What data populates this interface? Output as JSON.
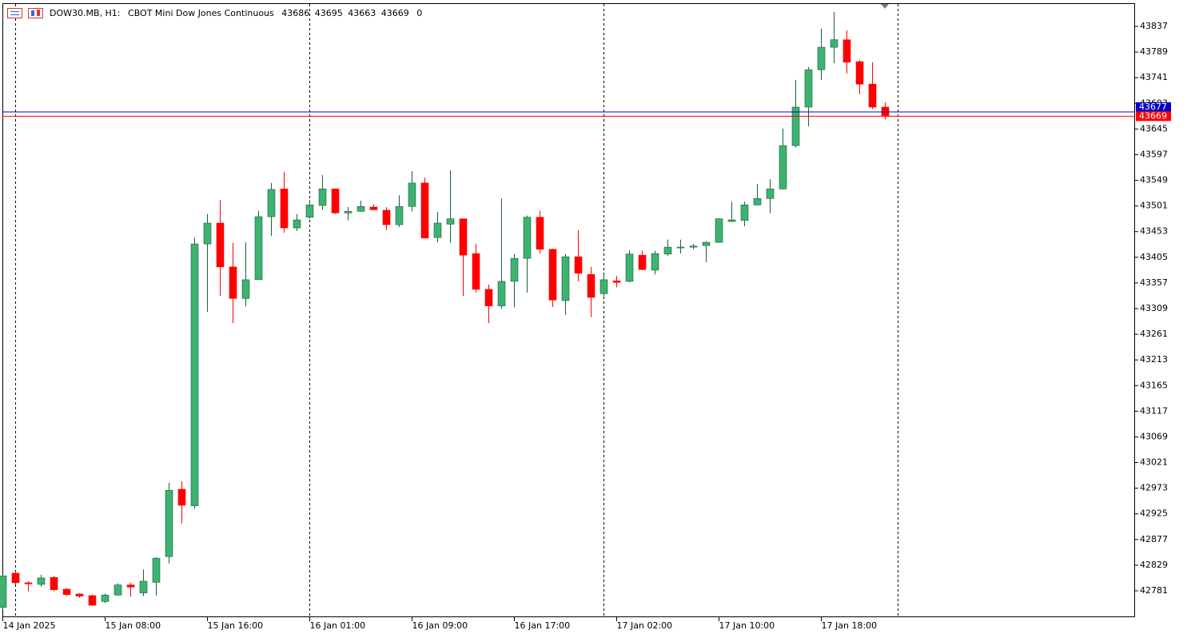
{
  "chart_data": {
    "type": "candlestick",
    "header": {
      "symbol": "DOW30.MB, H1:",
      "description": "CBOT Mini Dow Jones Continuous",
      "volume": 0
    },
    "categories": [
      "14 Jan 2025",
      null,
      null,
      null,
      null,
      null,
      null,
      null,
      "15 Jan 08:00",
      null,
      null,
      null,
      null,
      null,
      null,
      null,
      "15 Jan 16:00",
      null,
      null,
      null,
      null,
      null,
      null,
      null,
      "16 Jan 01:00",
      null,
      null,
      null,
      null,
      null,
      null,
      null,
      "16 Jan 09:00",
      null,
      null,
      null,
      null,
      null,
      null,
      null,
      "16 Jan 17:00",
      null,
      null,
      null,
      null,
      null,
      null,
      null,
      "17 Jan 02:00",
      null,
      null,
      null,
      null,
      null,
      null,
      null,
      "17 Jan 10:00",
      null,
      null,
      null,
      null,
      null,
      null,
      null,
      "17 Jan 18:00",
      null,
      null,
      null,
      null,
      null
    ],
    "open": [
      42750,
      42814,
      42796,
      42793,
      42806,
      42784,
      42775,
      42772,
      42761,
      42773,
      42792,
      42777,
      42797,
      42845,
      42971,
      42940,
      43430,
      43469,
      43387,
      43328,
      43363,
      43481,
      43533,
      43460,
      43480,
      43502,
      43533,
      43488,
      43491,
      43499,
      43493,
      43466,
      43500,
      43544,
      43442,
      43467,
      43477,
      43412,
      43345,
      43314,
      43360,
      43403,
      43480,
      43420,
      43324,
      43406,
      43373,
      43337,
      43361,
      43360,
      43409,
      43381,
      43411,
      43424,
      43424,
      43427,
      43433,
      43472,
      43474,
      43503,
      43515,
      43533,
      43614,
      43686,
      43756,
      43798,
      43812,
      43771,
      43729,
      43686
    ],
    "high": [
      42812,
      42817,
      42799,
      42811,
      42809,
      42786,
      42776,
      42774,
      42776,
      42795,
      42796,
      42821,
      42844,
      42983,
      42986,
      43442,
      43486,
      43512,
      43432,
      43433,
      43492,
      43544,
      43565,
      43486,
      43512,
      43559,
      43533,
      43499,
      43511,
      43504,
      43499,
      43521,
      43566,
      43554,
      43490,
      43568,
      43477,
      43430,
      43354,
      43515,
      43411,
      43483,
      43492,
      43421,
      43411,
      43456,
      43387,
      43373,
      43370,
      43418,
      43418,
      43417,
      43438,
      43438,
      43430,
      43435,
      43478,
      43509,
      43509,
      43542,
      43551,
      43646,
      43737,
      43761,
      43833,
      43864,
      43830,
      43774,
      43770,
      43695
    ],
    "low": [
      42746,
      42793,
      42780,
      42789,
      42780,
      42771,
      42768,
      42753,
      42758,
      42772,
      42770,
      42771,
      42772,
      42832,
      42907,
      42935,
      43303,
      43333,
      43282,
      43313,
      43363,
      43445,
      43451,
      43454,
      43477,
      43494,
      43486,
      43474,
      43490,
      43493,
      43456,
      43462,
      43491,
      43441,
      43433,
      43432,
      43333,
      43339,
      43282,
      43309,
      43311,
      43339,
      43412,
      43312,
      43297,
      43360,
      43293,
      43330,
      43349,
      43358,
      43381,
      43373,
      43408,
      43412,
      43420,
      43396,
      43432,
      43471,
      43463,
      43502,
      43488,
      43532,
      43611,
      43650,
      43737,
      43768,
      43749,
      43710,
      43682,
      43663
    ],
    "close": [
      42809,
      42796,
      42794,
      42805,
      42783,
      42774,
      42771,
      42754,
      42773,
      42792,
      42788,
      42799,
      42842,
      42969,
      42941,
      43430,
      43469,
      43387,
      43328,
      43363,
      43481,
      43532,
      43460,
      43475,
      43503,
      43533,
      43488,
      43491,
      43500,
      43494,
      43466,
      43500,
      43544,
      43441,
      43469,
      43477,
      43409,
      43345,
      43314,
      43360,
      43403,
      43480,
      43420,
      43325,
      43406,
      43375,
      43330,
      43363,
      43358,
      43411,
      43382,
      43412,
      43424,
      43424,
      43426,
      43433,
      43477,
      43475,
      43503,
      43515,
      43533,
      43614,
      43686,
      43756,
      43798,
      43812,
      43770,
      43729,
      43686,
      43669
    ],
    "up_color": "#3cb371",
    "down_color": "#ff0000",
    "ask": 43677,
    "ask_color": "#0000cc",
    "bid": 43669,
    "bid_color": "#ff0000",
    "ylim": [
      42731.6,
      43880.4
    ],
    "yticks": [
      43837,
      43789,
      43741,
      43693,
      43645,
      43597,
      43549,
      43501,
      43453,
      43405,
      43357,
      43309,
      43261,
      43213,
      43165,
      43117,
      43069,
      43021,
      42973,
      42925,
      42877,
      42829,
      42781
    ]
  }
}
